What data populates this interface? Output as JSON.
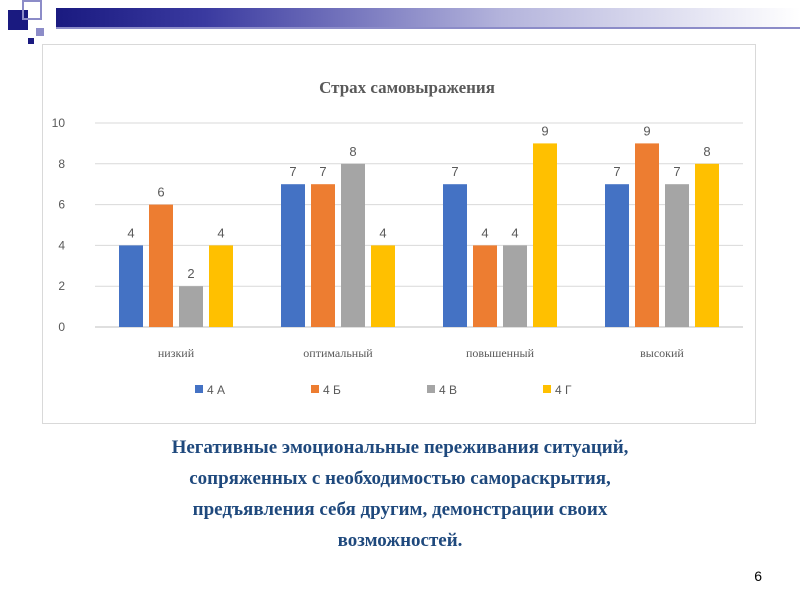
{
  "slide": {
    "caption_lines": [
      "Негативные эмоциональные переживания ситуаций,",
      "сопряженных с необходимостью самораскрытия,",
      "предъявления себя другим, демонстрации своих",
      "возможностей."
    ],
    "page_number": "6"
  },
  "colors": {
    "band_dark": "#1a1a80",
    "caption": "#1f497d"
  },
  "chart_data": {
    "type": "bar",
    "title": "Страх самовыражения",
    "categories": [
      "низкий",
      "оптимальный",
      "повышенный",
      "высокий"
    ],
    "series": [
      {
        "name": "4 А",
        "color": "#4472c4",
        "values": [
          4,
          7,
          7,
          7
        ]
      },
      {
        "name": "4 Б",
        "color": "#ed7d31",
        "values": [
          6,
          7,
          4,
          9
        ]
      },
      {
        "name": "4 В",
        "color": "#a5a5a5",
        "values": [
          2,
          8,
          4,
          7
        ]
      },
      {
        "name": "4 Г",
        "color": "#ffc000",
        "values": [
          4,
          4,
          9,
          8
        ]
      }
    ],
    "y_ticks": [
      0,
      2,
      4,
      6,
      8,
      10
    ],
    "ylim": [
      0,
      10
    ],
    "grid": true,
    "legend_position": "bottom",
    "data_labels": true
  }
}
